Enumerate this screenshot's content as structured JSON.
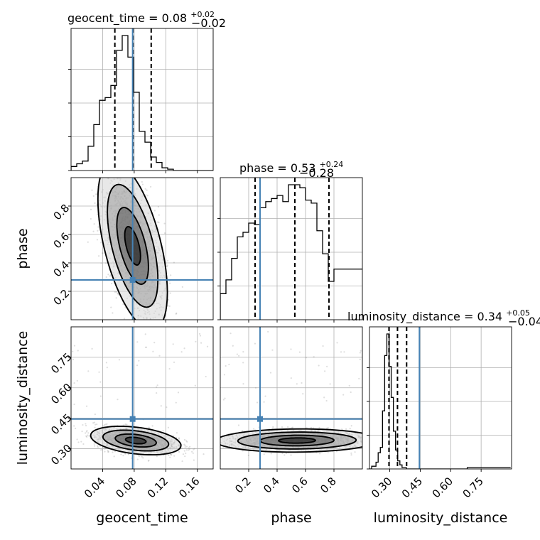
{
  "chart_data": {
    "type": "corner",
    "parameters": [
      "geocent_time",
      "phase",
      "luminosity_distance"
    ],
    "axes": {
      "geocent_time": {
        "label": "geocent_time",
        "range": [
          0.0,
          0.18
        ],
        "ticks": [
          "0.04",
          "0.08",
          "0.12",
          "0.16"
        ],
        "tick_values": [
          0.04,
          0.08,
          0.12,
          0.16
        ]
      },
      "phase": {
        "label": "phase",
        "range": [
          0.0,
          1.0
        ],
        "ticks": [
          "0.2",
          "0.4",
          "0.6",
          "0.8"
        ],
        "tick_values": [
          0.2,
          0.4,
          0.6,
          0.8
        ]
      },
      "luminosity_distance": {
        "label": "luminosity_distance",
        "range": [
          0.2,
          0.9
        ],
        "ticks": [
          "0.30",
          "0.45",
          "0.60",
          "0.75"
        ],
        "tick_values": [
          0.3,
          0.45,
          0.6,
          0.75
        ]
      }
    },
    "titles": {
      "geocent_time": {
        "name": "geocent_time",
        "median": "0.08",
        "plus": "+0.02",
        "minus": "−0.02"
      },
      "phase": {
        "name": "phase",
        "median": "0.53",
        "plus": "+0.24",
        "minus": "−0.28"
      },
      "luminosity_distance": {
        "name": "luminosity_distance",
        "median": "0.34",
        "plus": "+0.05",
        "minus": "−0.04"
      }
    },
    "truths": {
      "geocent_time": 0.078,
      "phase": 0.28,
      "luminosity_distance": 0.446
    },
    "quantiles": {
      "geocent_time": [
        0.0555,
        0.0785,
        0.1015
      ],
      "phase": [
        0.245,
        0.525,
        0.765
      ],
      "luminosity_distance": [
        0.296,
        0.338,
        0.383
      ]
    },
    "histograms": {
      "geocent_time": {
        "bin_start": 0.0,
        "bin_width": 0.0072,
        "counts": [
          0.03,
          0.05,
          0.07,
          0.18,
          0.34,
          0.52,
          0.54,
          0.63,
          0.89,
          1.0,
          0.84,
          0.58,
          0.29,
          0.21,
          0.1,
          0.06,
          0.02,
          0.01,
          0.0,
          0.0,
          0.0,
          0.0,
          0.0,
          0.0,
          0.0
        ]
      },
      "phase": {
        "bin_start": 0.0,
        "bin_width": 0.04,
        "counts": [
          0.17,
          0.26,
          0.4,
          0.54,
          0.57,
          0.63,
          0.62,
          0.73,
          0.77,
          0.79,
          0.81,
          0.77,
          0.88,
          0.88,
          0.86,
          0.78,
          0.76,
          0.58,
          0.43,
          0.25,
          0.33,
          0.33,
          0.33,
          0.33,
          0.33
        ]
      },
      "luminosity_distance": {
        "bin_start": 0.2,
        "bin_width": 0.0107,
        "counts": [
          0.0,
          0.02,
          0.02,
          0.05,
          0.12,
          0.16,
          0.43,
          0.84,
          1.0,
          0.76,
          0.53,
          0.28,
          0.14,
          0.06,
          0.03,
          0.01,
          0.01,
          0.0,
          0.0,
          0.0,
          0.0,
          0.0,
          0.0,
          0.0,
          0.0,
          0.0,
          0.0,
          0.0,
          0.0,
          0.0,
          0.0,
          0.0,
          0.0,
          0.0,
          0.0,
          0.0,
          0.0,
          0.0,
          0.0,
          0.0,
          0.0,
          0.0,
          0.0,
          0.0,
          0.0,
          0.01,
          0.01,
          0.01,
          0.01,
          0.01,
          0.01,
          0.01,
          0.01,
          0.01,
          0.01,
          0.01,
          0.01,
          0.01,
          0.01,
          0.01,
          0.01,
          0.01,
          0.01,
          0.01,
          0.01
        ]
      }
    },
    "joint_2d": {
      "phase_vs_geocent_time": {
        "x": "geocent_time",
        "y": "phase",
        "center": [
          0.078,
          0.52
        ],
        "spread": [
          0.02,
          0.27
        ],
        "correlation": -0.55
      },
      "luminosity_distance_vs_geocent_time": {
        "x": "geocent_time",
        "y": "luminosity_distance",
        "center": [
          0.082,
          0.34
        ],
        "spread": [
          0.026,
          0.032
        ],
        "correlation": -0.35
      },
      "luminosity_distance_vs_phase": {
        "x": "phase",
        "y": "luminosity_distance",
        "center": [
          0.54,
          0.34
        ],
        "spread": [
          0.26,
          0.026
        ],
        "correlation": 0.05
      }
    },
    "grid": true
  }
}
